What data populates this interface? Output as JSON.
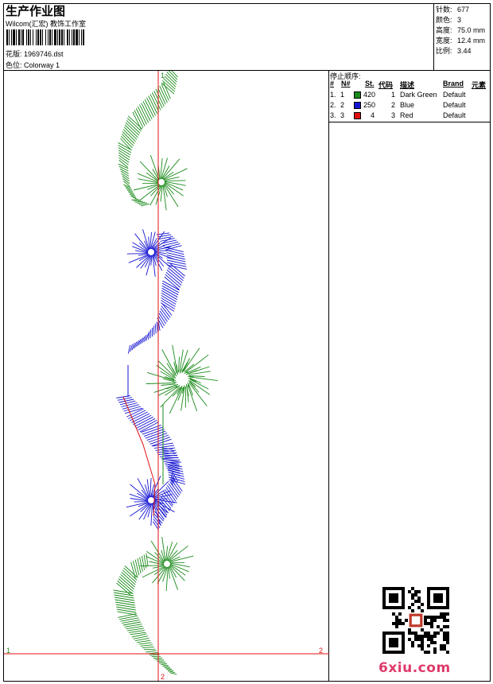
{
  "header": {
    "title": "生产作业图",
    "subtitle": "Wilcom(汇宏) 教饰工作室",
    "design_file": "花版: 1969746.dst",
    "colorway": "色位: Colorway 1"
  },
  "stats": [
    {
      "label": "针数:",
      "value": "677"
    },
    {
      "label": "颜色:",
      "value": "3"
    },
    {
      "label": "高度:",
      "value": "75.0 mm"
    },
    {
      "label": "宽度:",
      "value": "12.4 mm"
    },
    {
      "label": "比例:",
      "value": "3.44"
    }
  ],
  "stop_sequence": {
    "title": "停止顺序:",
    "headers": {
      "num": "#",
      "needle": "N#",
      "stitches": "St.",
      "code": "代码",
      "desc": "描述",
      "brand": "Brand",
      "element": "元素"
    },
    "rows": [
      {
        "num": "1.",
        "needle": "1",
        "color": "#1a8a1a",
        "stitches": "420",
        "code": "1",
        "desc": "Dark Green",
        "brand": "Default"
      },
      {
        "num": "2.",
        "needle": "2",
        "color": "#1414d2",
        "stitches": "250",
        "code": "2",
        "desc": "Blue",
        "brand": "Default"
      },
      {
        "num": "3.",
        "needle": "3",
        "color": "#e01010",
        "stitches": "4",
        "code": "3",
        "desc": "Red",
        "brand": "Default"
      }
    ]
  },
  "design": {
    "marker_left": "1",
    "marker_right": "2",
    "marker_top": "1",
    "marker_bottom": "2",
    "green": "#1a8a1a",
    "blue": "#1414d2",
    "red": "#e01010"
  },
  "watermark": "6xiu.com"
}
